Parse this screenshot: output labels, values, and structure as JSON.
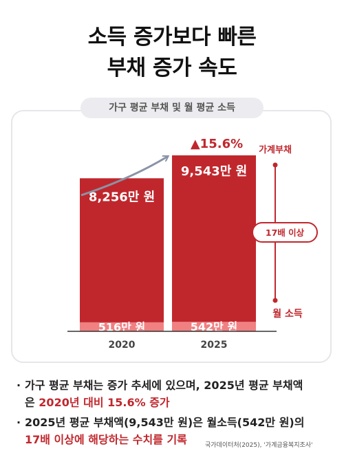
{
  "title_line1": "소득 증가보다 빠른",
  "title_line2": "부채 증가 속도",
  "chart_data": {
    "type": "bar",
    "title": "가구 평균 부채 및 월 평균 소득",
    "categories": [
      "2020",
      "2025"
    ],
    "series": [
      {
        "name": "월 소득",
        "values": [
          516,
          542
        ],
        "labels": [
          "516만 원",
          "542만 원"
        ],
        "color": "#f08082"
      },
      {
        "name": "가계부채",
        "values": [
          8256,
          9543
        ],
        "labels": [
          "8,256만 원",
          "9,543만 원"
        ],
        "color": "#c0272d"
      }
    ],
    "change_label": "▲15.6%",
    "legend_top": "가계부채",
    "legend_bottom": "월 소득",
    "ratio_badge": "17배 이상",
    "colors": {
      "accent": "#c0272d",
      "light": "#f08082",
      "axis": "#333333",
      "arrow": "#8a93a6"
    }
  },
  "bullets": [
    {
      "line1": "가구 평균 부채는 증가 추세에 있으며, 2025년 평균 부채액",
      "line2_pre": "은 ",
      "line2_highlight": "2020년 대비 15.6% 증가"
    },
    {
      "line1": "2025년 평균 부채액(9,543만 원)은 월소득(542만 원)의",
      "line2_highlight": "17배 이상에 해당하는 수치를 기록"
    }
  ],
  "source": "국가데이터처(2025), '가계금융복지조사'"
}
